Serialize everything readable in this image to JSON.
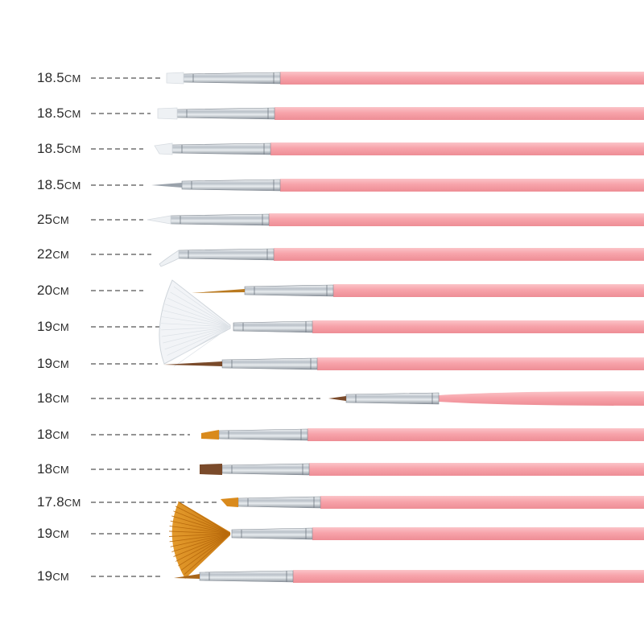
{
  "image": {
    "description_colors": {
      "background": "#ffffff",
      "handle": "#f7a6ac",
      "ferrule": "#c9cfd6",
      "bristle_white": "#eef1f4",
      "bristle_orange": "#d98a1c",
      "bristle_brown": "#7a4a2a",
      "leader_line": "#555555"
    },
    "brushes": [
      {
        "length": "18.5",
        "unit": "CM",
        "tip": "flat-white"
      },
      {
        "length": "18.5",
        "unit": "CM",
        "tip": "flat-white"
      },
      {
        "length": "18.5",
        "unit": "CM",
        "tip": "angled-white"
      },
      {
        "length": "18.5",
        "unit": "CM",
        "tip": "fine-liner"
      },
      {
        "length": "25",
        "unit": "CM",
        "tip": "pointed-white"
      },
      {
        "length": "22",
        "unit": "CM",
        "tip": "bent-white"
      },
      {
        "length": "20",
        "unit": "CM",
        "tip": "long-striper"
      },
      {
        "length": "19",
        "unit": "CM",
        "tip": "fan-white"
      },
      {
        "length": "19",
        "unit": "CM",
        "tip": "liner-brown"
      },
      {
        "length": "18",
        "unit": "CM",
        "tip": "detail-brown"
      },
      {
        "length": "18",
        "unit": "CM",
        "tip": "flat-orange"
      },
      {
        "length": "18",
        "unit": "CM",
        "tip": "flat-brown"
      },
      {
        "length": "17.8",
        "unit": "CM",
        "tip": "angled-orange"
      },
      {
        "length": "19",
        "unit": "CM",
        "tip": "fan-orange"
      },
      {
        "length": "19",
        "unit": "CM",
        "tip": "striper-orange"
      }
    ]
  }
}
